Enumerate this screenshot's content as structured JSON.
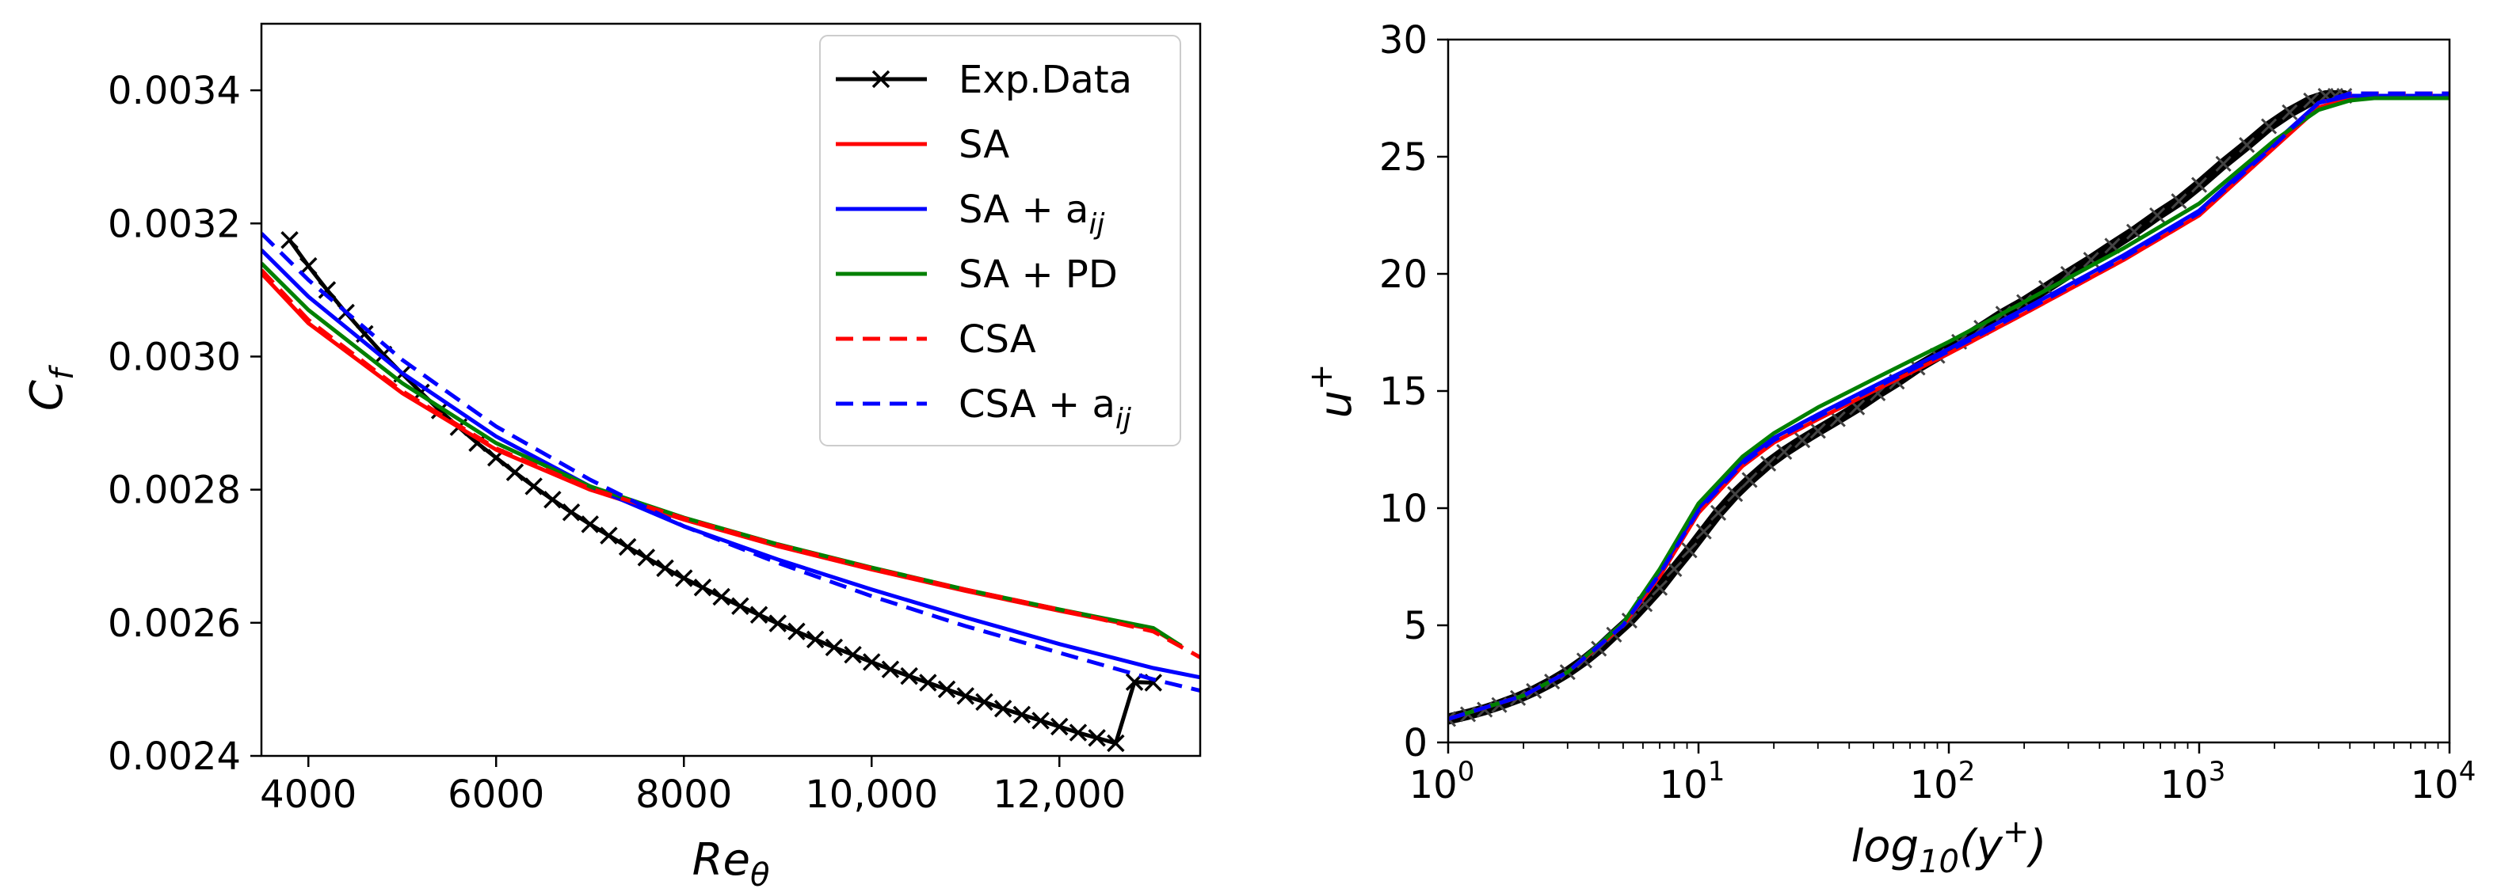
{
  "chart_data": [
    {
      "type": "line",
      "title": "",
      "xlabel": "Re_θ",
      "ylabel": "C_f",
      "xlabel_base": "Re",
      "xlabel_sub": "θ",
      "ylabel_base": "C",
      "ylabel_sub": "f",
      "xlim": [
        3500,
        13500
      ],
      "ylim": [
        0.0024,
        0.0035
      ],
      "xticks": [
        4000,
        6000,
        8000,
        10000,
        12000
      ],
      "xtick_labels": [
        "4000",
        "6000",
        "8000",
        "10,000",
        "12,000"
      ],
      "yticks": [
        0.0024,
        0.0026,
        0.0028,
        0.003,
        0.0032,
        0.0034
      ],
      "ytick_labels": [
        "0.0024",
        "0.0026",
        "0.0028",
        "0.0030",
        "0.0032",
        "0.0034"
      ],
      "legend_location": "top-right",
      "series": [
        {
          "name": "Exp.Data",
          "legend_main": "Exp.Data",
          "legend_sub": "",
          "color": "#000000",
          "style": "solid-x",
          "x": [
            3800,
            4000,
            4200,
            4400,
            4600,
            4800,
            5000,
            5200,
            5400,
            5600,
            5800,
            6000,
            6200,
            6400,
            6600,
            6800,
            7000,
            7200,
            7400,
            7600,
            7800,
            8000,
            8200,
            8400,
            8600,
            8800,
            9000,
            9200,
            9400,
            9600,
            9800,
            10000,
            10200,
            10400,
            10600,
            10800,
            11000,
            11200,
            11400,
            11600,
            11800,
            12000,
            12200,
            12400,
            12600,
            12800,
            13000
          ],
          "y": [
            0.003175,
            0.003136,
            0.0031,
            0.003066,
            0.003034,
            0.003003,
            0.002974,
            0.002946,
            0.002919,
            0.002894,
            0.00287,
            0.002848,
            0.002826,
            0.002805,
            0.002785,
            0.002766,
            0.002748,
            0.002731,
            0.002714,
            0.002698,
            0.002682,
            0.002667,
            0.002653,
            0.002639,
            0.002625,
            0.002612,
            0.002599,
            0.002587,
            0.002575,
            0.002563,
            0.002552,
            0.002541,
            0.00253,
            0.00252,
            0.00251,
            0.0025,
            0.00249,
            0.002481,
            0.002471,
            0.002462,
            0.002453,
            0.002444,
            0.002435,
            0.002427,
            0.002419,
            0.002511,
            0.00251
          ]
        },
        {
          "name": "SA",
          "legend_main": "SA",
          "legend_sub": "",
          "color": "#ff0000",
          "style": "solid",
          "x": [
            3500,
            4000,
            5000,
            6000,
            7000,
            8000,
            9000,
            10000,
            11000,
            12000,
            13000,
            13300
          ],
          "y": [
            0.003125,
            0.00305,
            0.002945,
            0.00286,
            0.0028,
            0.002755,
            0.002715,
            0.00268,
            0.002648,
            0.002618,
            0.00259,
            0.002565
          ]
        },
        {
          "name": "SA + a_ij",
          "legend_main": "SA + a",
          "legend_sub": "ij",
          "color": "#0000ff",
          "style": "solid",
          "x": [
            3500,
            4000,
            5000,
            6000,
            7000,
            8000,
            9000,
            10000,
            11000,
            12000,
            13000,
            13500
          ],
          "y": [
            0.00316,
            0.00309,
            0.002975,
            0.00288,
            0.002805,
            0.002745,
            0.002695,
            0.00265,
            0.002608,
            0.002568,
            0.002532,
            0.002518
          ]
        },
        {
          "name": "SA + PD",
          "legend_main": "SA + PD",
          "legend_sub": "",
          "color": "#008000",
          "style": "solid",
          "x": [
            3500,
            4000,
            5000,
            6000,
            7000,
            8000,
            9000,
            10000,
            11000,
            12000,
            13000,
            13300
          ],
          "y": [
            0.00314,
            0.00307,
            0.00296,
            0.00287,
            0.002805,
            0.002758,
            0.002718,
            0.002683,
            0.00265,
            0.00262,
            0.002592,
            0.002565
          ]
        },
        {
          "name": "CSA",
          "legend_main": "CSA",
          "legend_sub": "",
          "color": "#ff0000",
          "style": "dashed",
          "x": [
            3500,
            4000,
            5000,
            6000,
            7000,
            8000,
            9000,
            10000,
            11000,
            12000,
            13000,
            13500
          ],
          "y": [
            0.00313,
            0.003055,
            0.002948,
            0.002862,
            0.002802,
            0.002757,
            0.002717,
            0.002682,
            0.00265,
            0.00262,
            0.002587,
            0.002548
          ]
        },
        {
          "name": "CSA + a_ij",
          "legend_main": "CSA + a",
          "legend_sub": "ij",
          "color": "#0000ff",
          "style": "dashed",
          "x": [
            3500,
            4000,
            5000,
            6000,
            7000,
            8000,
            9000,
            10000,
            11000,
            12000,
            13000,
            13500
          ],
          "y": [
            0.003185,
            0.003115,
            0.002995,
            0.002895,
            0.002815,
            0.002745,
            0.00269,
            0.00264,
            0.002595,
            0.002555,
            0.002515,
            0.002498
          ]
        }
      ]
    },
    {
      "type": "line",
      "title": "",
      "xlabel": "log10(y+)",
      "ylabel": "u+",
      "xlabel_base": "log",
      "xlabel_sub": "10",
      "xlabel_arg_open": "(y",
      "xlabel_sup": "+",
      "xlabel_close": ")",
      "ylabel_base": "u",
      "ylabel_sup": "+",
      "xscale": "log",
      "xlim": [
        1,
        10000
      ],
      "ylim": [
        0,
        30
      ],
      "xticks": [
        1,
        10,
        100,
        1000,
        10000
      ],
      "xtick_base": "10",
      "xtick_exps": [
        "0",
        "1",
        "2",
        "3",
        "4"
      ],
      "yticks": [
        0,
        5,
        10,
        15,
        20,
        25,
        30
      ],
      "ytick_labels": [
        "0",
        "5",
        "10",
        "15",
        "20",
        "25",
        "30"
      ],
      "series": [
        {
          "name": "Exp.Data",
          "color": "#000000",
          "style": "markers",
          "x": [
            1.0,
            1.2,
            1.4,
            1.6,
            1.9,
            2.2,
            2.6,
            3.0,
            3.5,
            4.0,
            4.6,
            5.3,
            6.1,
            7.0,
            8.0,
            9.2,
            10.5,
            12.0,
            14.0,
            16.0,
            19.0,
            22.0,
            26.0,
            30.0,
            36.0,
            43.0,
            52.0,
            62.0,
            75.0,
            90.0,
            110.0,
            135.0,
            165.0,
            200.0,
            245.0,
            300.0,
            370.0,
            450.0,
            550.0,
            680.0,
            830.0,
            1000.0,
            1250.0,
            1550.0,
            1900.0,
            2300.0,
            2800.0,
            3200.0,
            3500.0,
            3800.0
          ],
          "y": [
            1.0,
            1.2,
            1.4,
            1.6,
            1.9,
            2.2,
            2.6,
            3.0,
            3.5,
            4.0,
            4.6,
            5.2,
            5.9,
            6.6,
            7.4,
            8.2,
            9.0,
            9.8,
            10.6,
            11.2,
            11.9,
            12.4,
            12.9,
            13.3,
            13.8,
            14.3,
            14.9,
            15.4,
            16.0,
            16.5,
            17.1,
            17.7,
            18.3,
            18.8,
            19.4,
            20.0,
            20.6,
            21.2,
            21.8,
            22.5,
            23.1,
            23.8,
            24.7,
            25.5,
            26.3,
            26.9,
            27.4,
            27.6,
            27.6,
            27.6
          ]
        },
        {
          "name": "SA",
          "color": "#ff0000",
          "style": "solid",
          "x": [
            1,
            2,
            3,
            5,
            7,
            10,
            15,
            20,
            30,
            50,
            100,
            200,
            500,
            1000,
            2000,
            3000,
            4000,
            10000
          ],
          "y": [
            1.0,
            2.0,
            3.0,
            5.0,
            7.1,
            9.8,
            11.8,
            12.8,
            13.8,
            15.0,
            16.6,
            18.3,
            20.6,
            22.5,
            25.4,
            27.1,
            27.5,
            27.5
          ]
        },
        {
          "name": "SA + a_ij",
          "color": "#0000ff",
          "style": "solid",
          "x": [
            1,
            2,
            3,
            5,
            7,
            10,
            15,
            20,
            30,
            50,
            100,
            200,
            500,
            1000,
            2000,
            3000,
            4000,
            10000
          ],
          "y": [
            1.0,
            2.0,
            3.0,
            5.1,
            7.3,
            10.0,
            12.0,
            13.0,
            14.0,
            15.2,
            16.8,
            18.5,
            20.8,
            22.7,
            25.6,
            27.3,
            27.6,
            27.6
          ]
        },
        {
          "name": "SA + PD",
          "color": "#008000",
          "style": "solid",
          "x": [
            1,
            2,
            3,
            5,
            7,
            10,
            15,
            20,
            30,
            50,
            100,
            200,
            500,
            1000,
            2000,
            3000,
            4000,
            5000,
            10000
          ],
          "y": [
            1.0,
            2.0,
            3.0,
            5.1,
            7.4,
            10.2,
            12.2,
            13.2,
            14.3,
            15.5,
            17.1,
            18.8,
            21.1,
            23.0,
            25.7,
            27.0,
            27.4,
            27.5,
            27.5
          ]
        },
        {
          "name": "CSA",
          "color": "#ff0000",
          "style": "dashed",
          "x": [
            1,
            2,
            3,
            5,
            7,
            10,
            15,
            20,
            30,
            50,
            100,
            200,
            500,
            1000,
            2000,
            3000,
            4000,
            10000
          ],
          "y": [
            1.0,
            2.0,
            3.0,
            5.0,
            7.1,
            9.8,
            11.8,
            12.8,
            13.8,
            15.0,
            16.6,
            18.3,
            20.6,
            22.5,
            25.5,
            27.3,
            27.7,
            27.7
          ]
        },
        {
          "name": "CSA + a_ij",
          "color": "#0000ff",
          "style": "dashed",
          "x": [
            1,
            2,
            3,
            5,
            7,
            10,
            15,
            20,
            30,
            50,
            100,
            200,
            500,
            1000,
            2000,
            3000,
            4000,
            10000
          ],
          "y": [
            1.0,
            2.0,
            3.0,
            5.0,
            7.2,
            9.9,
            11.9,
            12.9,
            13.9,
            15.1,
            16.7,
            18.4,
            20.7,
            22.6,
            25.5,
            27.3,
            27.7,
            27.7
          ]
        }
      ]
    }
  ]
}
